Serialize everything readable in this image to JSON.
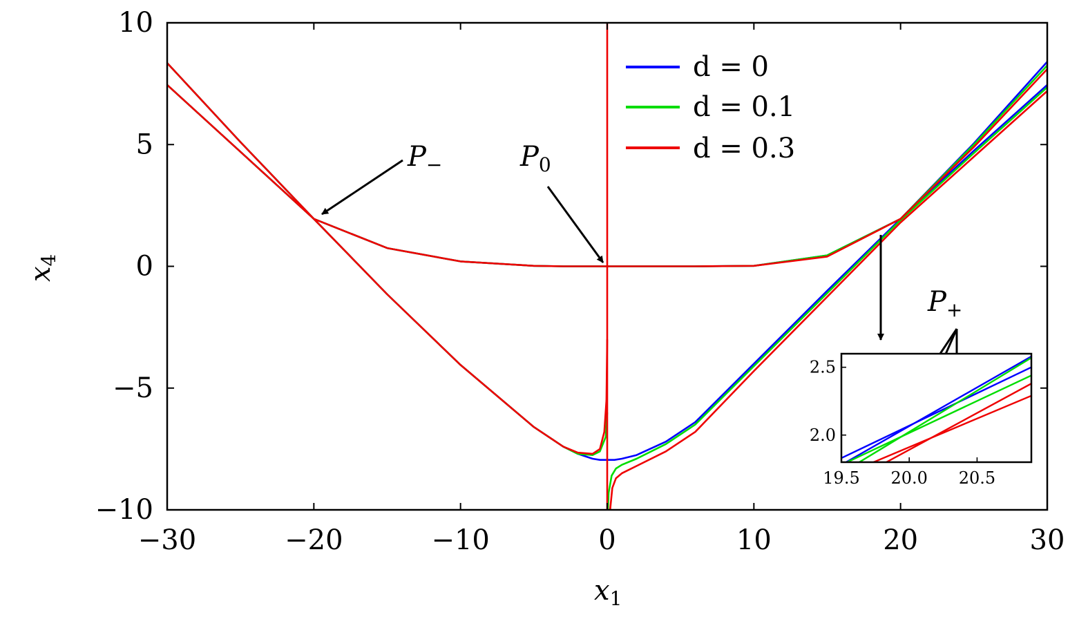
{
  "chart_data": {
    "type": "line",
    "title": "",
    "xlabel": "x",
    "xlabel_sub": "1",
    "ylabel": "x",
    "ylabel_sub": "4",
    "xlim": [
      -30,
      30
    ],
    "ylim": [
      -10,
      10
    ],
    "xticks": [
      -30,
      -20,
      -10,
      0,
      10,
      20,
      30
    ],
    "xtick_labels": [
      "−30",
      "−20",
      "−10",
      "0",
      "10",
      "20",
      "30"
    ],
    "yticks": [
      -10,
      -5,
      0,
      5,
      10
    ],
    "ytick_labels": [
      "−10",
      "−5",
      "0",
      "5",
      "10"
    ],
    "grid": false,
    "legend_position": "top-center",
    "series": [
      {
        "name": "d = 0",
        "color": "#0000ff",
        "branches": [
          {
            "x": [
              -30,
              -25,
              -20,
              -15,
              -10,
              -5,
              -3,
              -2,
              -1,
              -0.5,
              -0.1,
              0
            ],
            "y": [
              8.35,
              5.1,
              1.95,
              -1.15,
              -4.05,
              -6.6,
              -7.4,
              -7.7,
              -7.9,
              -7.95,
              -7.95,
              -7.95
            ]
          },
          {
            "x": [
              -30,
              -25,
              -20,
              -15,
              -10,
              -5,
              -3,
              -2,
              -1,
              -0.5,
              -0.1,
              0
            ],
            "y": [
              7.45,
              4.7,
              1.95,
              0.75,
              0.2,
              0.02,
              0,
              0,
              0,
              0,
              0,
              0
            ]
          },
          {
            "x": [
              0,
              3,
              6,
              10,
              15,
              20,
              25,
              30
            ],
            "y": [
              0,
              0,
              0,
              0.02,
              0.45,
              1.95,
              5.05,
              8.4
            ]
          },
          {
            "x": [
              0,
              0.1,
              0.5,
              1,
              2,
              4,
              6,
              10,
              15,
              20,
              25,
              30
            ],
            "y": [
              -7.95,
              -7.95,
              -7.95,
              -7.9,
              -7.75,
              -7.2,
              -6.4,
              -4.0,
              -1.0,
              1.95,
              4.75,
              7.45
            ]
          }
        ]
      },
      {
        "name": "d = 0.1",
        "color": "#00dd00",
        "branches": [
          {
            "x": [
              -30,
              -25,
              -20,
              -15,
              -10,
              -5,
              -3,
              -2,
              -1,
              -0.5,
              -0.1,
              0
            ],
            "y": [
              8.35,
              5.1,
              1.95,
              -1.15,
              -4.05,
              -6.6,
              -7.4,
              -7.7,
              -7.75,
              -7.6,
              -7.0,
              -6.0
            ]
          },
          {
            "x": [
              -30,
              -25,
              -20,
              -15,
              -10,
              -5,
              -3,
              -2,
              -1,
              -0.5,
              -0.1,
              0
            ],
            "y": [
              7.45,
              4.7,
              1.95,
              0.75,
              0.2,
              0.02,
              0,
              0,
              0,
              0,
              0,
              0
            ]
          },
          {
            "x": [
              0,
              3,
              6,
              10,
              15,
              20,
              25,
              30
            ],
            "y": [
              0,
              0,
              0,
              0.02,
              0.45,
              1.95,
              5.0,
              8.25
            ]
          },
          {
            "x": [
              0.05,
              0.1,
              0.3,
              0.6,
              1,
              2,
              4,
              6,
              10,
              15,
              20,
              25,
              30
            ],
            "y": [
              -10,
              -9.3,
              -8.6,
              -8.3,
              -8.15,
              -7.9,
              -7.3,
              -6.5,
              -4.1,
              -1.1,
              1.9,
              4.65,
              7.35
            ]
          }
        ]
      },
      {
        "name": "d = 0.3",
        "color": "#ee0000",
        "branches": [
          {
            "x": [
              -30,
              -25,
              -20,
              -15,
              -10,
              -5,
              -3,
              -2,
              -1,
              -0.5,
              -0.2,
              -0.05,
              0
            ],
            "y": [
              8.35,
              5.1,
              1.95,
              -1.15,
              -4.05,
              -6.6,
              -7.4,
              -7.65,
              -7.7,
              -7.5,
              -6.8,
              -5.5,
              -3.0
            ]
          },
          {
            "x": [
              -30,
              -25,
              -20,
              -15,
              -10,
              -5,
              -3,
              -2,
              -1,
              -0.5,
              -0.1,
              0
            ],
            "y": [
              7.45,
              4.7,
              1.95,
              0.75,
              0.2,
              0.02,
              0,
              0,
              0,
              0,
              0,
              0
            ]
          },
          {
            "x": [
              0,
              0
            ],
            "y": [
              -10,
              10
            ]
          },
          {
            "x": [
              0,
              3,
              6,
              10,
              15,
              20,
              25,
              30
            ],
            "y": [
              0,
              0,
              0,
              0.02,
              0.4,
              1.95,
              4.9,
              8.1
            ]
          },
          {
            "x": [
              0.2,
              0.35,
              0.6,
              1,
              2,
              4,
              6,
              10,
              15,
              20,
              25,
              30
            ],
            "y": [
              -10,
              -9.1,
              -8.7,
              -8.5,
              -8.2,
              -7.6,
              -6.8,
              -4.3,
              -1.25,
              1.8,
              4.5,
              7.2
            ]
          }
        ]
      }
    ],
    "annotations": [
      {
        "text": "P",
        "sub": "−",
        "x": -19.7,
        "y": 1.95
      },
      {
        "text": "P",
        "sub": "0",
        "x": 0,
        "y": 0
      },
      {
        "text": "P",
        "sub": "+",
        "x": 19.9,
        "y": 1.95
      }
    ],
    "inset": {
      "xlim": [
        19.5,
        20.9
      ],
      "ylim": [
        1.8,
        2.6
      ],
      "xticks": [
        19.5,
        20.0,
        20.5
      ],
      "xtick_labels": [
        "19.5",
        "20.0",
        "20.5"
      ],
      "yticks": [
        2.0,
        2.5
      ],
      "ytick_labels": [
        "2.0",
        "2.5"
      ],
      "lines": [
        {
          "color": "#0000ff",
          "x": [
            19.5,
            20.9
          ],
          "y": [
            1.83,
            2.5
          ]
        },
        {
          "color": "#0000ff",
          "x": [
            19.5,
            20.9
          ],
          "y": [
            1.78,
            2.58
          ]
        },
        {
          "color": "#00dd00",
          "x": [
            19.5,
            20.9
          ],
          "y": [
            1.78,
            2.44
          ]
        },
        {
          "color": "#00dd00",
          "x": [
            19.5,
            20.9
          ],
          "y": [
            1.72,
            2.57
          ]
        },
        {
          "color": "#ee0000",
          "x": [
            19.5,
            20.9
          ],
          "y": [
            1.7,
            2.29
          ]
        },
        {
          "color": "#ee0000",
          "x": [
            19.5,
            20.9
          ],
          "y": [
            1.62,
            2.38
          ]
        }
      ],
      "intersections": [
        {
          "x": 19.78,
          "y": 1.97
        },
        {
          "x": 19.98,
          "y": 1.98
        },
        {
          "x": 20.35,
          "y": 2.04
        }
      ]
    }
  }
}
